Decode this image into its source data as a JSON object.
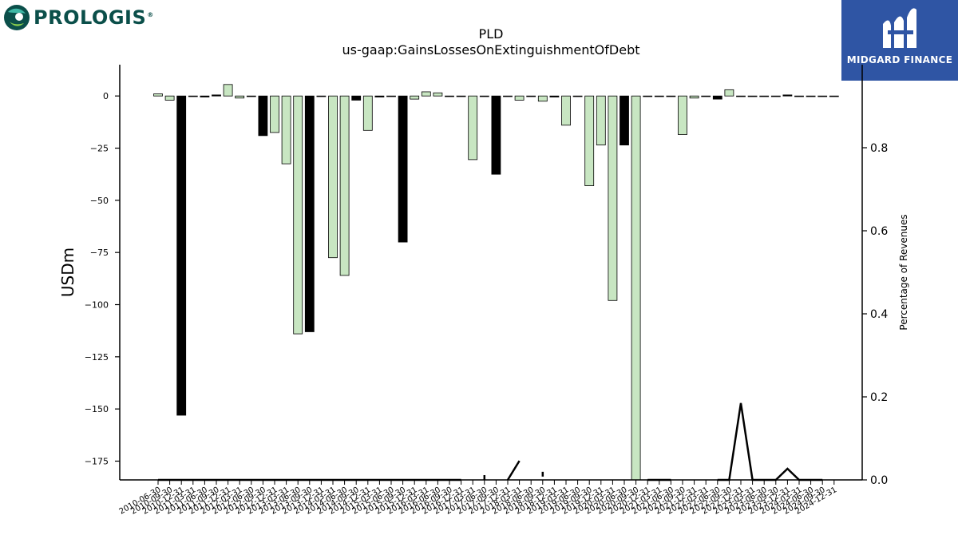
{
  "logos": {
    "left_name": "PROLOGIS",
    "left_mark": "®",
    "right_name": "MIDGARD FINANCE"
  },
  "chart_data": {
    "type": "bar",
    "title": "PLD",
    "subtitle": "us-gaap:GainsLossesOnExtinguishmentOfDebt",
    "ylabel": "USDm",
    "y2label": "Percentage of Revenues",
    "ylim": [
      -184,
      15
    ],
    "y2lim": [
      0,
      1.0
    ],
    "yticks": [
      0,
      -25,
      -50,
      -75,
      -100,
      -125,
      -150,
      -175
    ],
    "y2ticks": [
      0.0,
      0.2,
      0.4,
      0.6,
      0.8
    ],
    "grid": false,
    "colors": {
      "positive": "#c8e6c2",
      "negative": "#000000",
      "line": "#000000",
      "edge": "#000000"
    },
    "categories": [
      "2010-06-30",
      "2010-09-30",
      "2010-12-31",
      "2011-03-31",
      "2011-06-30",
      "2011-09-30",
      "2011-12-31",
      "2012-03-31",
      "2012-06-30",
      "2012-09-30",
      "2012-12-31",
      "2013-03-31",
      "2013-06-30",
      "2013-09-30",
      "2013-12-31",
      "2014-03-31",
      "2014-06-30",
      "2014-09-30",
      "2014-12-31",
      "2015-03-31",
      "2015-06-30",
      "2015-09-30",
      "2015-12-31",
      "2016-03-31",
      "2016-06-30",
      "2016-09-30",
      "2016-12-31",
      "2017-03-31",
      "2017-06-30",
      "2017-09-30",
      "2017-12-31",
      "2018-03-31",
      "2018-06-30",
      "2018-09-30",
      "2018-12-31",
      "2019-03-31",
      "2019-06-30",
      "2019-09-30",
      "2019-12-31",
      "2020-03-31",
      "2020-06-30",
      "2020-09-30",
      "2020-12-31",
      "2021-03-31",
      "2021-06-30",
      "2021-09-30",
      "2021-12-31",
      "2022-03-31",
      "2022-06-30",
      "2022-09-30",
      "2022-12-31",
      "2023-03-31",
      "2023-06-30",
      "2023-09-30",
      "2023-12-31",
      "2024-03-31",
      "2024-06-30",
      "2024-09-30",
      "2024-12-31"
    ],
    "values": [
      1,
      -2,
      -153,
      0,
      -0.5,
      0.5,
      5.5,
      -1,
      0,
      -19,
      -17.5,
      -32.5,
      -114,
      -113,
      0,
      -77.5,
      -86,
      -2,
      -16.5,
      -0.5,
      0,
      -70,
      -1.5,
      2,
      1.5,
      0,
      0,
      -30.5,
      0,
      -37.5,
      0,
      -2,
      0,
      -2.5,
      -0.5,
      -14,
      0,
      -43,
      -23.5,
      -98,
      -23.5,
      -184,
      0,
      0,
      0,
      -18.5,
      -1,
      0,
      -1.5,
      3,
      0,
      0,
      0,
      0,
      0.5,
      0,
      0,
      0,
      0
    ],
    "value_colors": [
      "pos",
      "pos",
      "neg",
      "pos",
      "neg",
      "neg",
      "pos",
      "pos",
      "pos",
      "neg",
      "pos",
      "pos",
      "pos",
      "neg",
      "pos",
      "pos",
      "pos",
      "neg",
      "pos",
      "neg",
      "pos",
      "neg",
      "pos",
      "pos",
      "pos",
      "pos",
      "pos",
      "pos",
      "pos",
      "neg",
      "pos",
      "pos",
      "pos",
      "pos",
      "neg",
      "pos",
      "pos",
      "pos",
      "pos",
      "pos",
      "neg",
      "pos",
      "pos",
      "pos",
      "pos",
      "pos",
      "pos",
      "pos",
      "neg",
      "pos",
      "pos",
      "pos",
      "pos",
      "pos",
      "neg",
      "pos",
      "pos",
      "pos",
      "pos"
    ],
    "pct_of_revenues": [
      0,
      0,
      0,
      0,
      0,
      0,
      0,
      0,
      0,
      0,
      0,
      0,
      0,
      0,
      0,
      0,
      0,
      0,
      0,
      0,
      0,
      0,
      0,
      0,
      0,
      0,
      0,
      null,
      0,
      null,
      0,
      0.046,
      null,
      0.008,
      null,
      null,
      null,
      null,
      null,
      null,
      null,
      null,
      0,
      0,
      0,
      null,
      null,
      null,
      0,
      0,
      0.185,
      0,
      0,
      0,
      0.027,
      0,
      0,
      0,
      null
    ]
  }
}
